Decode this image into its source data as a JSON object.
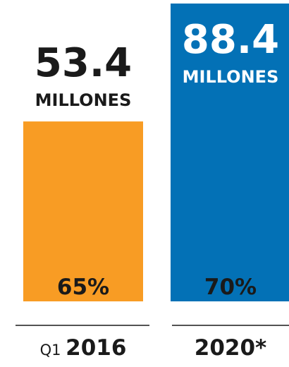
{
  "chart_data": {
    "type": "bar",
    "categories": [
      {
        "prefix": "Q1",
        "label": "2016"
      },
      {
        "prefix": "",
        "label": "2020*"
      }
    ],
    "values": [
      53.4,
      88.4
    ],
    "value_labels": [
      "53.4",
      "88.4"
    ],
    "unit_labels": [
      "MILLONES",
      "MILLONES"
    ],
    "percent_labels": [
      "65%",
      "70%"
    ],
    "colors": [
      "#f89c24",
      "#0371b6"
    ],
    "ylim": [
      0,
      88.4
    ],
    "grid": false,
    "legend": "none"
  }
}
